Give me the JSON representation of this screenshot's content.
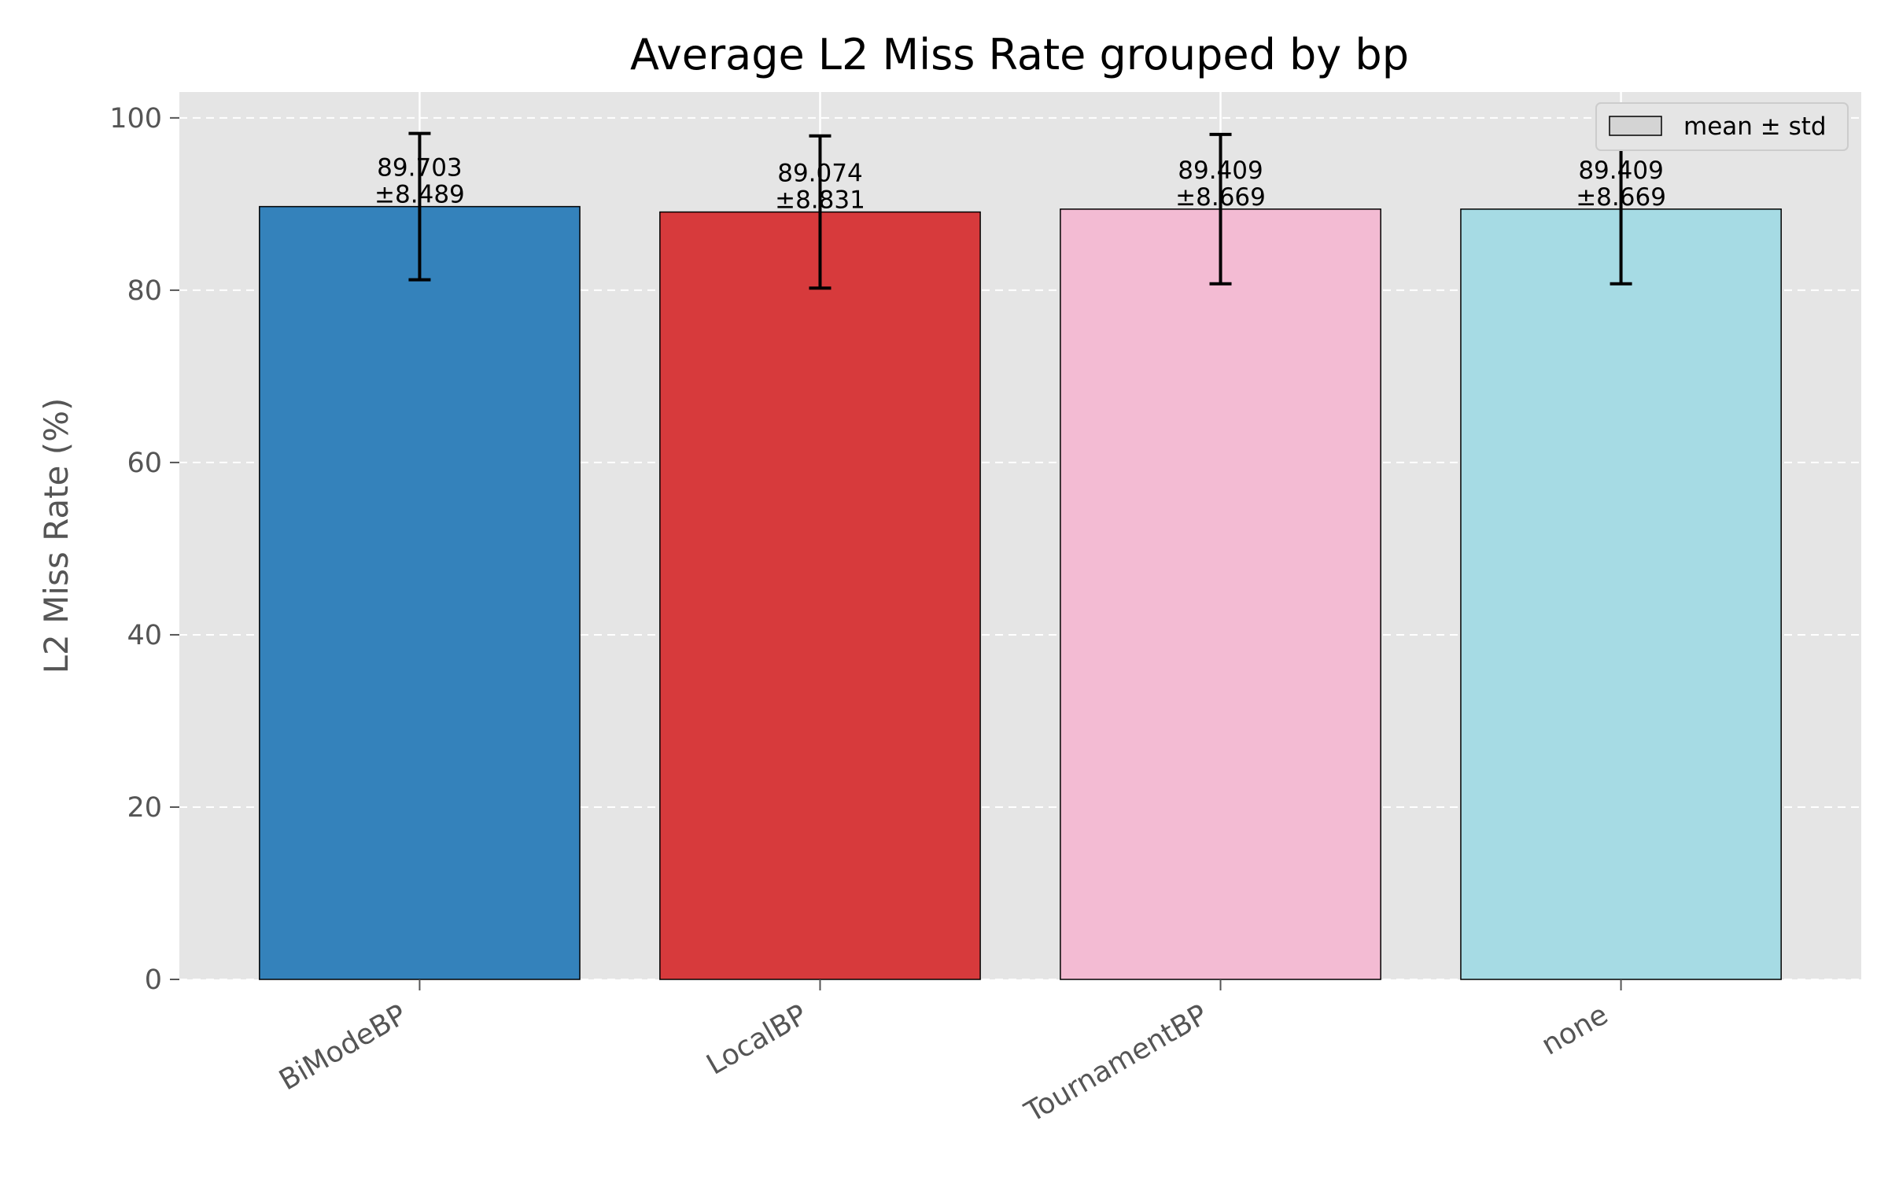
{
  "chart_data": {
    "type": "bar",
    "title": "Average L2 Miss Rate grouped by bp",
    "xlabel": "",
    "ylabel": "L2 Miss Rate (%)",
    "ylim": [
      0,
      103
    ],
    "yticks": [
      0,
      20,
      40,
      60,
      80,
      100
    ],
    "categories": [
      "BiModeBP",
      "LocalBP",
      "TournamentBP",
      "none"
    ],
    "values": [
      89.703,
      89.074,
      89.409,
      89.409
    ],
    "errors": [
      8.489,
      8.831,
      8.669,
      8.669
    ],
    "value_labels": [
      "89.703",
      "89.074",
      "89.409",
      "89.409"
    ],
    "error_labels": [
      "±8.489",
      "±8.831",
      "±8.669",
      "±8.669"
    ],
    "colors": [
      "#3482bb",
      "#d73a3c",
      "#f3bbd3",
      "#a6dbe4"
    ],
    "grid": true,
    "legend": {
      "label": "mean ± std",
      "placement": "top-right"
    },
    "background": "#e5e5e5"
  }
}
